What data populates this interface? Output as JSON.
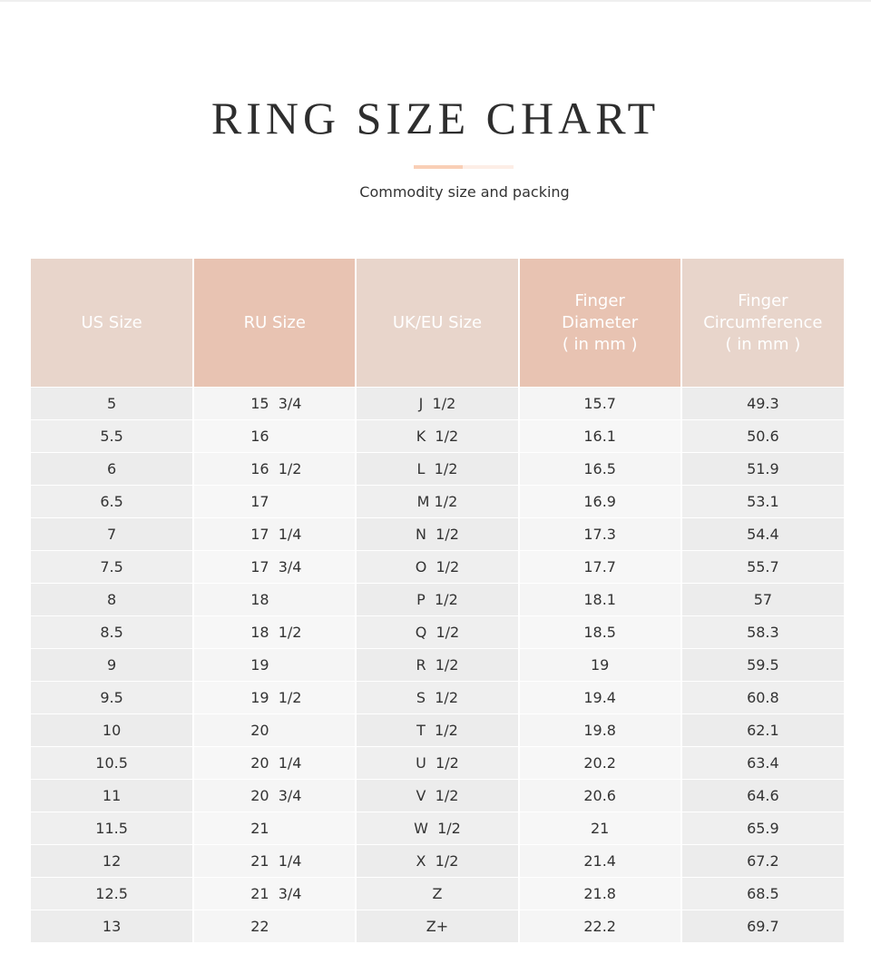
{
  "title": "RING SIZE CHART",
  "subtitle": "Commodity size and packing",
  "colors": {
    "header_light": "#e8d5cb",
    "header_dark": "#e8c3b2",
    "accent_bar": "#f9cfb6"
  },
  "headers": [
    "US Size",
    "RU Size",
    "UK/EU Size",
    "Finger\nDiameter\n( in mm )",
    "Finger\nCircumference\n( in mm )"
  ],
  "rows": [
    [
      "5",
      "15  3/4",
      "J  1/2",
      "15.7",
      "49.3"
    ],
    [
      "5.5",
      "16",
      "K  1/2",
      "16.1",
      "50.6"
    ],
    [
      "6",
      "16  1/2",
      "L  1/2",
      "16.5",
      "51.9"
    ],
    [
      "6.5",
      "17",
      "M 1/2",
      "16.9",
      "53.1"
    ],
    [
      "7",
      "17  1/4",
      "N  1/2",
      "17.3",
      "54.4"
    ],
    [
      "7.5",
      "17  3/4",
      "O  1/2",
      "17.7",
      "55.7"
    ],
    [
      "8",
      "18",
      "P  1/2",
      "18.1",
      "57"
    ],
    [
      "8.5",
      "18  1/2",
      "Q  1/2",
      "18.5",
      "58.3"
    ],
    [
      "9",
      "19",
      "R  1/2",
      "19",
      "59.5"
    ],
    [
      "9.5",
      "19  1/2",
      "S  1/2",
      "19.4",
      "60.8"
    ],
    [
      "10",
      "20",
      "T  1/2",
      "19.8",
      "62.1"
    ],
    [
      "10.5",
      "20  1/4",
      "U  1/2",
      "20.2",
      "63.4"
    ],
    [
      "11",
      "20  3/4",
      "V  1/2",
      "20.6",
      "64.6"
    ],
    [
      "11.5",
      "21",
      "W  1/2",
      "21",
      "65.9"
    ],
    [
      "12",
      "21  1/4",
      "X  1/2",
      "21.4",
      "67.2"
    ],
    [
      "12.5",
      "21  3/4",
      "Z",
      "21.8",
      "68.5"
    ],
    [
      "13",
      "22",
      "Z+",
      "22.2",
      "69.7"
    ]
  ]
}
